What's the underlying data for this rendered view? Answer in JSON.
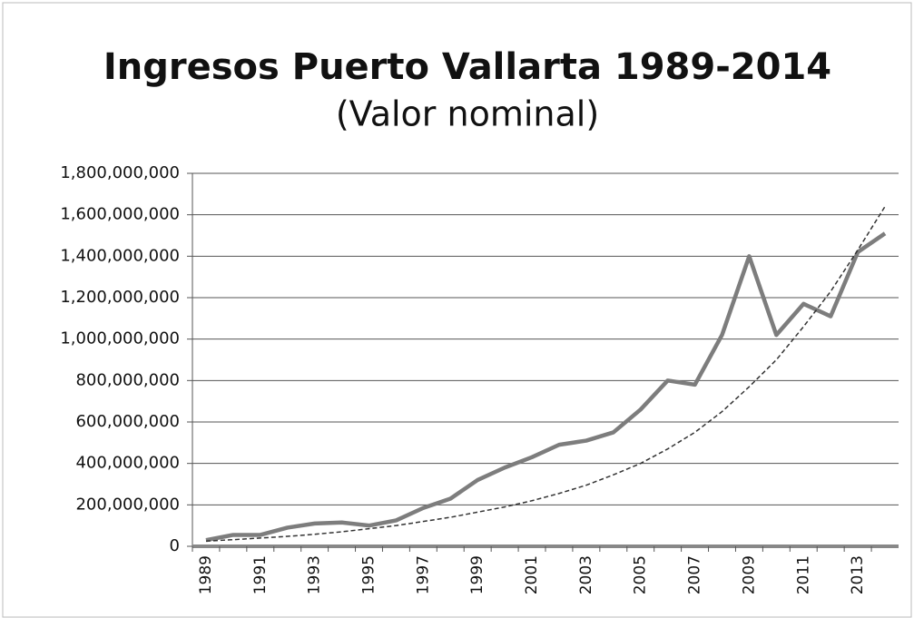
{
  "chart_data": {
    "type": "line",
    "title": "Ingresos Puerto Vallarta 1989-2014",
    "subtitle": "(Valor nominal)",
    "categories": [
      "1989",
      null,
      "1991",
      null,
      "1993",
      null,
      "1995",
      null,
      "1997",
      null,
      "1999",
      null,
      "2001",
      null,
      "2003",
      null,
      "2005",
      null,
      "2007",
      null,
      "2009",
      null,
      "2011",
      null,
      "2013",
      null
    ],
    "series": [
      {
        "color": "#7d7d7d",
        "values": [
          30000000,
          55000000,
          55000000,
          90000000,
          110000000,
          115000000,
          100000000,
          125000000,
          185000000,
          230000000,
          320000000,
          380000000,
          430000000,
          490000000,
          510000000,
          550000000,
          660000000,
          800000000,
          780000000,
          1020000000,
          1400000000,
          1020000000,
          1170000000,
          1110000000,
          1420000000,
          1510000000
        ]
      },
      {
        "color": "#333333",
        "dashed": true,
        "values": [
          25000000,
          32000000,
          40000000,
          48000000,
          58000000,
          70000000,
          85000000,
          100000000,
          120000000,
          140000000,
          165000000,
          190000000,
          220000000,
          255000000,
          295000000,
          345000000,
          400000000,
          470000000,
          550000000,
          650000000,
          770000000,
          900000000,
          1060000000,
          1230000000,
          1430000000,
          1640000000
        ]
      }
    ],
    "ylim": [
      0,
      1800000000
    ],
    "yticks": [
      0,
      {
        "value": 200000000,
        "label": "200,000,000"
      },
      {
        "value": 400000000,
        "label": "400,000,000"
      },
      {
        "value": 600000000,
        "label": "600,000,000"
      },
      {
        "value": 800000000,
        "label": "800,000,000"
      },
      {
        "value": 1000000000,
        "label": "1,000,000,000"
      },
      {
        "value": 1200000000,
        "label": "1,200,000,000"
      },
      {
        "value": 1400000000,
        "label": "1,400,000,000"
      },
      {
        "value": 1600000000,
        "label": "1,600,000,000"
      },
      {
        "value": 1800000000,
        "label": "1,800,000,000"
      }
    ],
    "grid": true
  }
}
